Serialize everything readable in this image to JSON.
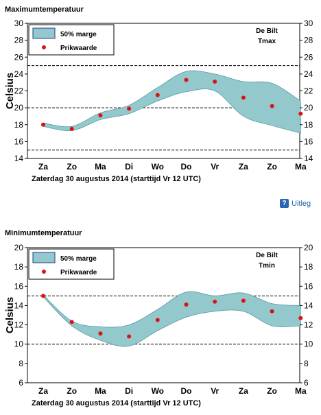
{
  "charts": [
    {
      "title": "Maximumtemperatuur",
      "station": "De Bilt",
      "variable": "Tmax"
    },
    {
      "title": "Minimumtemperatuur",
      "station": "De Bilt",
      "variable": "Tmin"
    }
  ],
  "help": {
    "label": "Uitleg",
    "icon": "question-icon"
  },
  "colors": {
    "band": "#93c8cc",
    "band_stroke": "#5a9aa3",
    "point": "#dd1111",
    "legend_border": "#2a3a8c"
  },
  "chart_data": [
    {
      "type": "area",
      "title": "Maximumtemperatuur",
      "ylabel": "Celsius",
      "subtitle": "Zaterdag  30 augustus  2014  (starttijd  Vr 12 UTC)",
      "categories": [
        "Za",
        "Zo",
        "Ma",
        "Di",
        "Wo",
        "Do",
        "Vr",
        "Za",
        "Zo",
        "Ma"
      ],
      "ylim": [
        14,
        30
      ],
      "yticks": [
        14,
        16,
        18,
        20,
        22,
        24,
        26,
        28,
        30
      ],
      "hlines_dashed": [
        15,
        20,
        25
      ],
      "annotation": [
        "De Bilt",
        "Tmax"
      ],
      "legend": {
        "band": "50% marge",
        "points": "Prikwaarde",
        "position": "top-left"
      },
      "series": [
        {
          "name": "Prikwaarde",
          "values": [
            18.0,
            17.5,
            19.1,
            19.9,
            21.5,
            23.3,
            23.1,
            21.2,
            20.2,
            19.3
          ]
        },
        {
          "name": "50% marge",
          "upper": [
            18.2,
            17.8,
            19.4,
            20.3,
            22.4,
            24.3,
            24.0,
            23.1,
            22.9,
            20.8
          ],
          "lower": [
            17.8,
            17.3,
            18.6,
            19.3,
            20.8,
            21.9,
            22.0,
            19.0,
            17.9,
            17.0
          ]
        }
      ]
    },
    {
      "type": "area",
      "title": "Minimumtemperatuur",
      "ylabel": "Celsius",
      "subtitle": "Zaterdag  30 augustus  2014  (starttijd  Vr 12 UTC)",
      "categories": [
        "Za",
        "Zo",
        "Ma",
        "Di",
        "Wo",
        "Do",
        "Vr",
        "Za",
        "Zo",
        "Ma"
      ],
      "ylim": [
        6,
        20
      ],
      "yticks": [
        6,
        8,
        10,
        12,
        14,
        16,
        18,
        20
      ],
      "hlines_dashed": [
        10,
        15
      ],
      "annotation": [
        "De Bilt",
        "Tmin"
      ],
      "legend": {
        "band": "50% marge",
        "points": "Prikwaarde",
        "position": "top-left"
      },
      "series": [
        {
          "name": "Prikwaarde",
          "values": [
            15.0,
            12.3,
            11.1,
            10.8,
            12.5,
            14.1,
            14.4,
            14.5,
            13.4,
            12.7
          ]
        },
        {
          "name": "50% marge",
          "upper": [
            15.1,
            12.4,
            11.8,
            12.0,
            13.6,
            15.4,
            15.0,
            15.3,
            14.2,
            14.0
          ],
          "lower": [
            14.9,
            11.9,
            10.4,
            9.8,
            11.4,
            12.8,
            13.4,
            13.4,
            11.9,
            11.9
          ]
        }
      ]
    }
  ]
}
